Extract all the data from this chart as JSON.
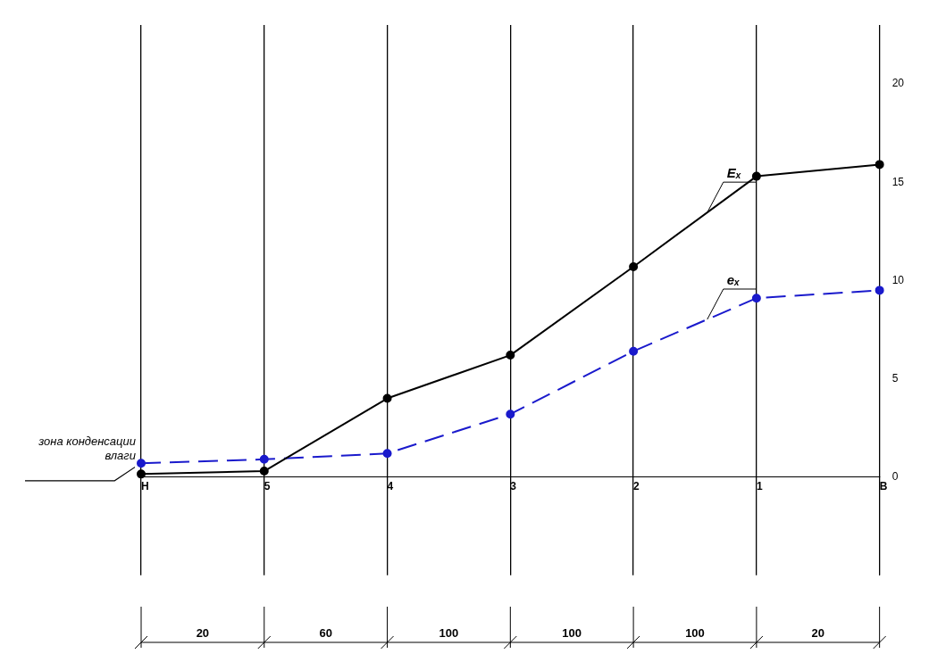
{
  "chart_data": {
    "type": "line",
    "categories": [
      "Н",
      "5",
      "4",
      "3",
      "2",
      "1",
      "В"
    ],
    "series": [
      {
        "name": "Eₓ",
        "color": "#000000",
        "values": [
          0.15,
          0.3,
          4.0,
          6.2,
          10.7,
          15.3,
          15.9
        ],
        "line_style": "solid"
      },
      {
        "name": "eₓ",
        "color": "#1a1acc",
        "values": [
          0.7,
          0.9,
          1.2,
          3.2,
          6.4,
          9.1,
          9.5
        ],
        "line_style": "dashed"
      }
    ],
    "ylim": [
      -5,
      23
    ],
    "yticks": [
      0,
      5,
      10,
      15,
      20
    ],
    "grid": "x",
    "legend": false,
    "marker": "circle",
    "annotations": [
      "зона конденсации влаги",
      "20",
      "60",
      "100",
      "100",
      "100",
      "20"
    ]
  }
}
